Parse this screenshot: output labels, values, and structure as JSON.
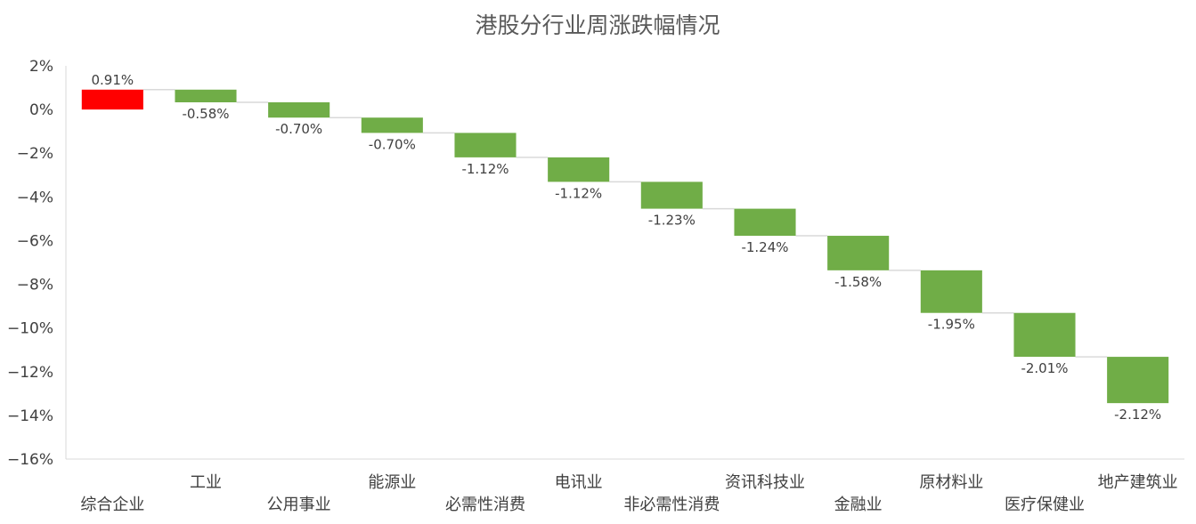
{
  "chart_data": {
    "type": "bar",
    "subtype": "waterfall",
    "title": "港股分行业周涨跌幅情况",
    "xlabel": "",
    "ylabel": "",
    "ylim": [
      -16,
      2
    ],
    "yticks": [
      2,
      0,
      -2,
      -4,
      -6,
      -8,
      -10,
      -12,
      -14,
      -16
    ],
    "ytick_labels": [
      "2%",
      "0%",
      "−2%",
      "−4%",
      "−6%",
      "−8%",
      "−10%",
      "−12%",
      "−14%",
      "−16%"
    ],
    "categories": [
      "综合企业",
      "工业",
      "公用事业",
      "能源业",
      "必需性消费",
      "电讯业",
      "非必需性消费",
      "资讯科技业",
      "金融业",
      "原材料业",
      "医疗保健业",
      "地产建筑业"
    ],
    "values": [
      0.91,
      -0.58,
      -0.7,
      -0.7,
      -1.12,
      -1.12,
      -1.23,
      -1.24,
      -1.58,
      -1.95,
      -2.01,
      -2.12
    ],
    "data_labels": [
      "0.91%",
      "-0.58%",
      "-0.70%",
      "-0.70%",
      "-1.12%",
      "-1.12%",
      "-1.23%",
      "-1.24%",
      "-1.58%",
      "-1.95%",
      "-2.01%",
      "-2.12%"
    ],
    "colors": {
      "increase": "#ff0000",
      "decrease": "#70ad47",
      "connector": "#d9d9d9",
      "axis": "#d9d9d9",
      "text": "#404040",
      "title": "#595959"
    },
    "grid": false,
    "legend": "none"
  }
}
